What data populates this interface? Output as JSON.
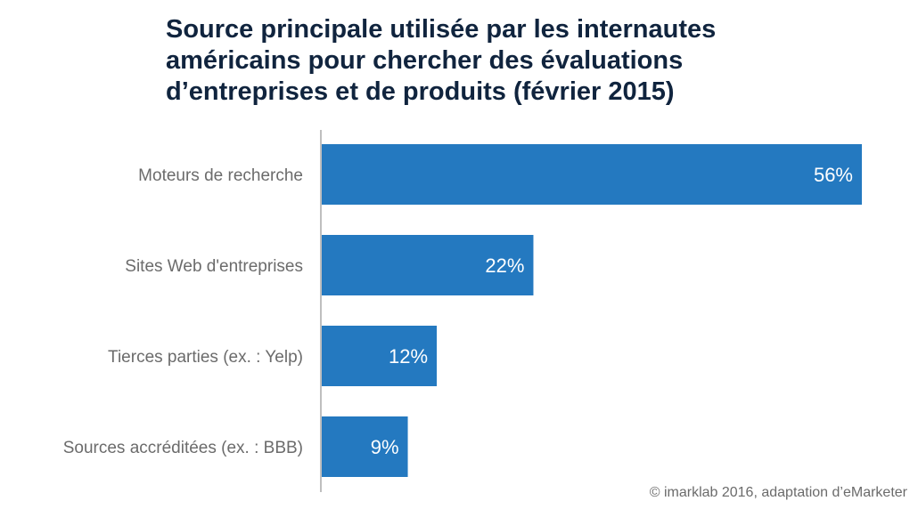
{
  "chart_data": {
    "type": "bar",
    "orientation": "horizontal",
    "title_lines": [
      "Source principale utilisée par les internautes",
      "américains pour chercher des évaluations",
      "d’entreprises et de produits (février 2015)"
    ],
    "categories": [
      "Moteurs de recherche",
      "Sites Web d'entreprises",
      "Tierces parties (ex. : Yelp)",
      "Sources accréditées (ex. : BBB)"
    ],
    "values": [
      56,
      22,
      12,
      9
    ],
    "data_labels": [
      "56%",
      "22%",
      "12%",
      "9%"
    ],
    "unit": "%",
    "xlabel": "",
    "ylabel": "",
    "xlim": [
      0,
      56
    ],
    "grid": false,
    "legend": "none",
    "bar_color": "#2479c0",
    "label_color": "#ffffff",
    "category_color": "#6b6b6b",
    "title_color": "#10243e"
  },
  "footer": "© imarklab 2016, adaptation d’eMarketer"
}
